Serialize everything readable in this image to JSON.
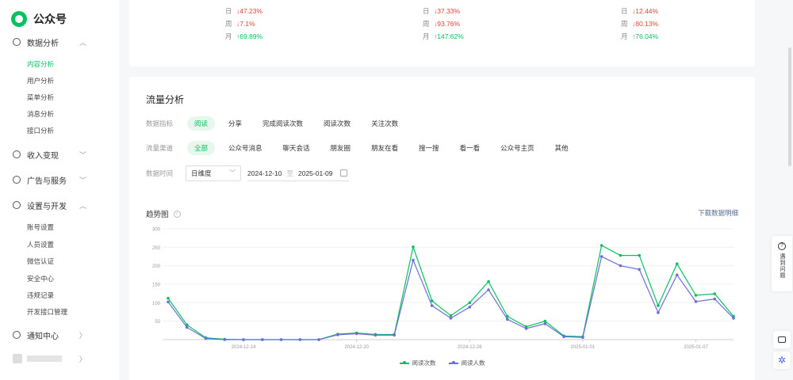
{
  "app": {
    "name": "公众号"
  },
  "sidebar": {
    "groups": [
      {
        "label": "数据分析",
        "expanded": true,
        "items": [
          "内容分析",
          "用户分析",
          "菜单分析",
          "消息分析",
          "接口分析"
        ]
      },
      {
        "label": "收入变现",
        "expanded": false,
        "items": []
      },
      {
        "label": "广告与服务",
        "expanded": false,
        "items": []
      },
      {
        "label": "设置与开发",
        "expanded": true,
        "items": [
          "账号设置",
          "人员设置",
          "微信认证",
          "安全中心",
          "违规记录",
          "开发接口管理"
        ]
      },
      {
        "label": "通知中心",
        "expanded": false,
        "items": []
      }
    ],
    "active_item": "内容分析"
  },
  "top_stats": {
    "columns": [
      [
        {
          "label": "日",
          "value": "↓47.23%",
          "dir": "down"
        },
        {
          "label": "周",
          "value": "↓7.1%",
          "dir": "down"
        },
        {
          "label": "月",
          "value": "↑69.89%",
          "dir": "up"
        }
      ],
      [
        {
          "label": "日",
          "value": "↓37.33%",
          "dir": "down"
        },
        {
          "label": "周",
          "value": "↓93.76%",
          "dir": "down"
        },
        {
          "label": "月",
          "value": "↑147.62%",
          "dir": "up"
        }
      ],
      [
        {
          "label": "日",
          "value": "↓12.44%",
          "dir": "down"
        },
        {
          "label": "周",
          "value": "↓80.13%",
          "dir": "down"
        },
        {
          "label": "月",
          "value": "↑76.04%",
          "dir": "up"
        }
      ]
    ]
  },
  "traffic": {
    "title": "流量分析",
    "metric_label": "数据指标",
    "metrics": [
      "阅读",
      "分享",
      "完成阅读次数",
      "阅读次数",
      "关注次数"
    ],
    "metric_active": 0,
    "channel_label": "流量渠道",
    "channels": [
      "全部",
      "公众号消息",
      "聊天会话",
      "朋友圈",
      "朋友在看",
      "搜一搜",
      "看一看",
      "公众号主页",
      "其他"
    ],
    "channel_active": 0,
    "time_label": "数据时间",
    "granularity": "日维度",
    "date_start": "2024-12-10",
    "date_end": "2025-01-09",
    "chart_title": "趋势图",
    "download": "下载数据明细"
  },
  "chart_data": {
    "type": "line",
    "ylim": [
      0,
      300
    ],
    "yticks": [
      0,
      50,
      100,
      150,
      200,
      250,
      300
    ],
    "ytick_labels": [
      "",
      "50",
      "100",
      "150",
      "200",
      "250",
      "300"
    ],
    "x": [
      "2024-12-10",
      "2024-12-11",
      "2024-12-12",
      "2024-12-13",
      "2024-12-14",
      "2024-12-15",
      "2024-12-16",
      "2024-12-17",
      "2024-12-18",
      "2024-12-19",
      "2024-12-20",
      "2024-12-21",
      "2024-12-22",
      "2024-12-23",
      "2024-12-24",
      "2024-12-25",
      "2024-12-26",
      "2024-12-27",
      "2024-12-28",
      "2024-12-29",
      "2024-12-30",
      "2024-12-31",
      "2025-01-01",
      "2025-01-02",
      "2025-01-03",
      "2025-01-04",
      "2025-01-05",
      "2025-01-06",
      "2025-01-07",
      "2025-01-08",
      "2025-01-09"
    ],
    "xtick_labels": {
      "4": "2024-12-14",
      "10": "2024-12-20",
      "16": "2024-12-26",
      "22": "2025-01-01",
      "28": "2025-01-07"
    },
    "series": [
      {
        "name": "阅读次数",
        "color": "#07c160",
        "values": [
          112,
          40,
          5,
          1,
          0,
          0,
          0,
          0,
          0,
          15,
          18,
          14,
          14,
          251,
          105,
          65,
          100,
          157,
          63,
          35,
          50,
          10,
          8,
          255,
          228,
          228,
          92,
          205,
          120,
          124,
          63
        ]
      },
      {
        "name": "阅读人数",
        "color": "#6b6fd6",
        "values": [
          102,
          33,
          3,
          0,
          0,
          0,
          0,
          0,
          0,
          13,
          16,
          12,
          12,
          215,
          92,
          58,
          88,
          135,
          55,
          30,
          43,
          8,
          6,
          225,
          200,
          190,
          73,
          175,
          103,
          110,
          58
        ]
      }
    ]
  }
}
